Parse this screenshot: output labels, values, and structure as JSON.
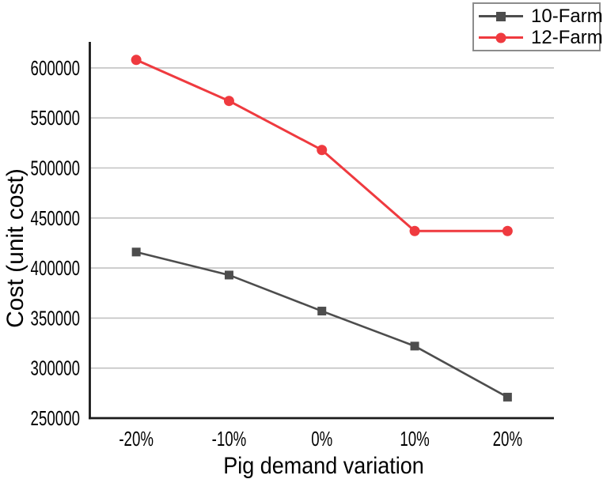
{
  "chart_data": {
    "type": "line",
    "title": "",
    "xlabel": "Pig demand variation",
    "ylabel": "Cost (unit cost)",
    "categories": [
      "-20%",
      "-10%",
      "0%",
      "10%",
      "20%"
    ],
    "series": [
      {
        "name": "10-Farm",
        "marker": "square",
        "color": "#4d4d4d",
        "values": [
          416000,
          393000,
          357000,
          322000,
          271000
        ]
      },
      {
        "name": "12-Farm",
        "marker": "circle",
        "color": "#ef3a3f",
        "values": [
          608000,
          567000,
          518000,
          437000,
          437000
        ]
      }
    ],
    "ylim": [
      250000,
      626000
    ],
    "yticks": [
      250000,
      300000,
      350000,
      400000,
      450000,
      500000,
      550000,
      600000
    ],
    "grid": true,
    "legend_position": "top-right",
    "colors": {
      "gridline": "#c2c2c2",
      "axis": "#1a1a1a",
      "text": "#000000",
      "legend_border": "#8c8c8c",
      "background": "#ffffff"
    }
  }
}
